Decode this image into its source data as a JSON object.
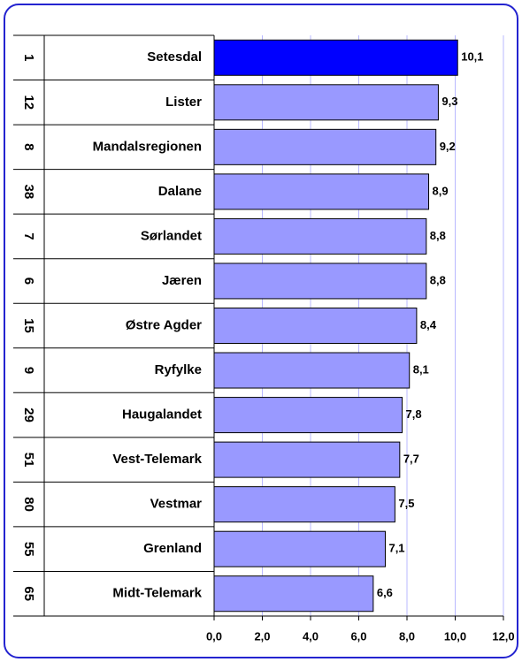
{
  "chart_data": {
    "type": "bar",
    "orientation": "horizontal",
    "ranks": [
      1,
      12,
      8,
      38,
      7,
      6,
      15,
      9,
      29,
      51,
      80,
      55,
      65
    ],
    "categories": [
      "Setesdal",
      "Lister",
      "Mandalsregionen",
      "Dalane",
      "Sørlandet",
      "Jæren",
      "Østre Agder",
      "Ryfylke",
      "Haugalandet",
      "Vest-Telemark",
      "Vestmar",
      "Grenland",
      "Midt-Telemark"
    ],
    "values": [
      10.1,
      9.3,
      9.2,
      8.9,
      8.8,
      8.8,
      8.4,
      8.1,
      7.8,
      7.7,
      7.5,
      7.1,
      6.6
    ],
    "value_labels": [
      "10,1",
      "9,3",
      "9,2",
      "8,9",
      "8,8",
      "8,8",
      "8,4",
      "8,1",
      "7,8",
      "7,7",
      "7,5",
      "7,1",
      "6,6"
    ],
    "colors": [
      "#0000ff",
      "#9999ff",
      "#9999ff",
      "#9999ff",
      "#9999ff",
      "#9999ff",
      "#9999ff",
      "#9999ff",
      "#9999ff",
      "#9999ff",
      "#9999ff",
      "#9999ff",
      "#9999ff"
    ],
    "xlim": [
      0,
      12
    ],
    "xticks": [
      {
        "value": 0,
        "label": "0,0"
      },
      {
        "value": 2,
        "label": "2,0"
      },
      {
        "value": 4,
        "label": "4,0"
      },
      {
        "value": 6,
        "label": "6,0"
      },
      {
        "value": 8,
        "label": "8,0"
      },
      {
        "value": 10,
        "label": "10,0"
      },
      {
        "value": 12,
        "label": "12,0"
      }
    ],
    "grid": true
  }
}
